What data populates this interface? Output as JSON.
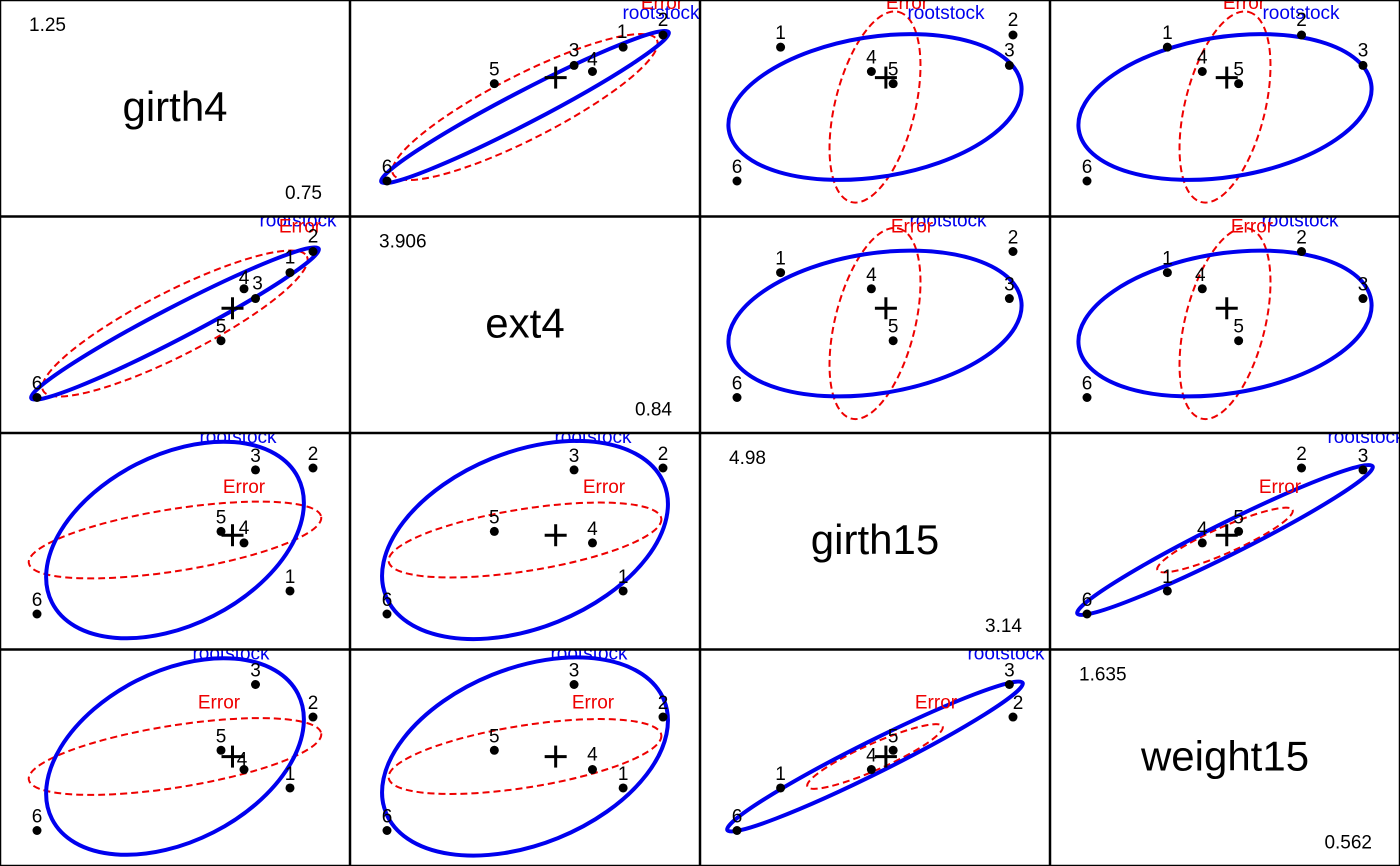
{
  "chart_data": {
    "type": "scatter",
    "title": "",
    "variables": [
      {
        "name": "girth4",
        "max": "1.25",
        "min": "0.75"
      },
      {
        "name": "ext4",
        "max": "3.906",
        "min": "0.84"
      },
      {
        "name": "girth15",
        "max": "4.98",
        "min": "3.14"
      },
      {
        "name": "weight15",
        "max": "1.635",
        "min": "0.562"
      }
    ],
    "group_labels": [
      "1",
      "2",
      "3",
      "4",
      "5",
      "6"
    ],
    "group_means": {
      "girth4": [
        1.14,
        1.16,
        1.11,
        1.1,
        1.08,
        0.92
      ],
      "ext4": [
        2.98,
        3.11,
        2.82,
        2.88,
        2.56,
        2.21
      ],
      "girth15": [
        3.74,
        4.38,
        4.37,
        3.99,
        4.05,
        3.62
      ],
      "weight15": [
        0.871,
        1.063,
        1.151,
        0.921,
        0.973,
        0.756
      ]
    },
    "grand_mean": {
      "girth4": 1.09,
      "ext4": 2.76,
      "girth15": 4.03,
      "weight15": 0.956
    },
    "ellipse_labels": {
      "hypothesis": "rootstock",
      "error": "Error"
    },
    "colors": {
      "hypothesis": "#0000ee",
      "error": "#ee0000",
      "points": "#000000"
    }
  }
}
